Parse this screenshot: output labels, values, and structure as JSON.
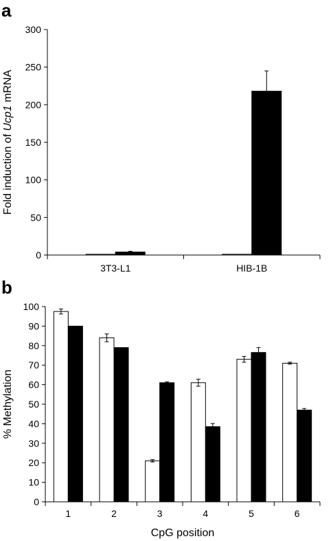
{
  "chart_data": [
    {
      "panel": "a",
      "type": "bar",
      "title": "",
      "ylabel_parts": [
        "Fold induction of ",
        "Ucp1",
        " mRNA"
      ],
      "xlabel": "",
      "ylim": [
        0,
        300
      ],
      "yticks": [
        0,
        50,
        100,
        150,
        200,
        250,
        300
      ],
      "categories": [
        "3T3-L1",
        "HIB-1B"
      ],
      "series": [
        {
          "fill": "#ffffff",
          "values": [
            1,
            1
          ],
          "errors": [
            0,
            0
          ]
        },
        {
          "fill": "#000000",
          "values": [
            4,
            218
          ],
          "errors": [
            1,
            27
          ]
        }
      ],
      "grid": false,
      "legend": "none"
    },
    {
      "panel": "b",
      "type": "bar",
      "title": "",
      "ylabel": "% Methylation",
      "xlabel": "CpG position",
      "ylim": [
        0,
        100
      ],
      "yticks": [
        0,
        10,
        20,
        30,
        40,
        50,
        60,
        70,
        80,
        90,
        100
      ],
      "categories": [
        "1",
        "2",
        "3",
        "4",
        "5",
        "6"
      ],
      "series": [
        {
          "fill": "#ffffff",
          "values": [
            97.5,
            84,
            21,
            61,
            73,
            71
          ],
          "errors": [
            1.3,
            2,
            0.6,
            1.8,
            1.5,
            0.5
          ]
        },
        {
          "fill": "#000000",
          "values": [
            90,
            79,
            61,
            38.5,
            76.5,
            47
          ],
          "errors": [
            0,
            0,
            0.4,
            1.6,
            2.5,
            0.8
          ]
        }
      ],
      "grid": false,
      "legend": "none"
    }
  ]
}
